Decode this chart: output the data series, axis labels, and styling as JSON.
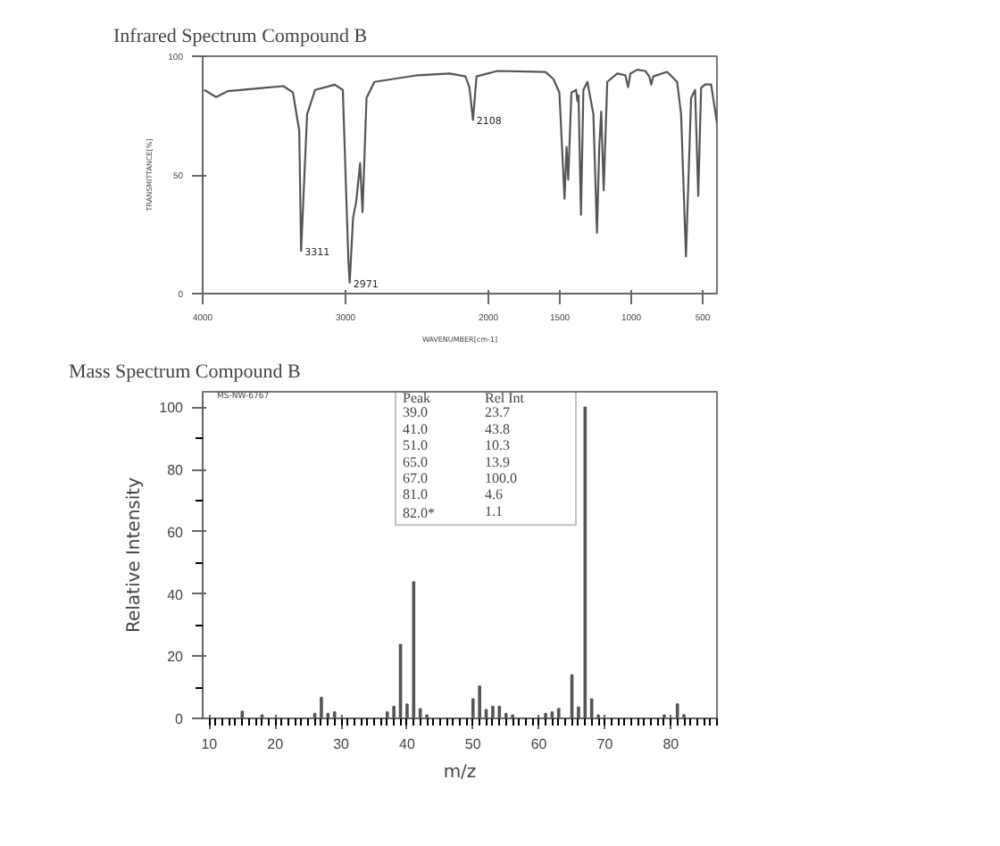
{
  "chart_data": [
    {
      "type": "line",
      "title": "Infrared Spectrum Compound B",
      "xlabel": "WAVENUMBER[cm-1]",
      "ylabel": "TRANSMITTANCE[%]",
      "xlim": [
        4000,
        400
      ],
      "xticks": [
        4000,
        3000,
        2000,
        1500,
        1000,
        500
      ],
      "ylim": [
        0,
        100
      ],
      "yticks": [
        0,
        50,
        100
      ],
      "grid": false,
      "marker": "none",
      "line_style": "solid",
      "series": [
        {
          "color": "#555555",
          "x": [
            3989,
            3906,
            3823,
            3601,
            3435,
            3368,
            3324,
            3311,
            3269,
            3213,
            3075,
            3019,
            2980,
            2971,
            2947,
            2925,
            2898,
            2881,
            2853,
            2798,
            2493,
            2271,
            2161,
            2133,
            2108,
            2083,
            1936,
            1601,
            1545,
            1503,
            1467,
            1453,
            1441,
            1419,
            1386,
            1377,
            1369,
            1352,
            1335,
            1307,
            1265,
            1240,
            1224,
            1210,
            1193,
            1168,
            1098,
            1042,
            1022,
            1006,
            958,
            902,
            874,
            860,
            846,
            749,
            679,
            651,
            617,
            581,
            553,
            531,
            511,
            483,
            441,
            400
          ],
          "values": [
            85.8,
            82.8,
            85.3,
            86.5,
            87.4,
            84.7,
            68.6,
            18,
            75.5,
            85.8,
            88,
            85.8,
            13.7,
            4.6,
            32,
            38.9,
            54.9,
            34.3,
            82.4,
            89.2,
            92,
            92.7,
            91.5,
            87,
            73.2,
            91.5,
            93.8,
            93.4,
            90.4,
            84.7,
            40,
            61.8,
            48,
            84.7,
            85.8,
            81.2,
            83.5,
            33.2,
            85.8,
            89.2,
            75.5,
            25.6,
            61.8,
            76.7,
            43.5,
            89.2,
            92.7,
            92,
            87,
            92.7,
            94.3,
            93.8,
            91.5,
            88.1,
            91.5,
            93.4,
            89.2,
            75.5,
            15.6,
            82.4,
            85.8,
            41.2,
            86.7,
            88.1,
            88.1,
            72
          ]
        }
      ],
      "annotations": [
        {
          "text": "3311",
          "x": 3311,
          "y": 18
        },
        {
          "text": "2971",
          "x": 2971,
          "y": 4.6
        },
        {
          "text": "2108",
          "x": 2108,
          "y": 73.2
        }
      ]
    },
    {
      "type": "bar",
      "title": "Mass Spectrum Compound B",
      "xlabel": "m/z",
      "ylabel": "Relative Intensity",
      "xlim": [
        9,
        87
      ],
      "xticks": [
        10,
        20,
        30,
        40,
        50,
        60,
        70,
        80
      ],
      "ylim": [
        0,
        105
      ],
      "yticks": [
        0,
        20,
        40,
        60,
        80,
        100
      ],
      "grid": false,
      "x": [
        15,
        18,
        26,
        27,
        28,
        29,
        37,
        38,
        39,
        40,
        41,
        42,
        43,
        50,
        51,
        52,
        53,
        54,
        55,
        56,
        61,
        62,
        63,
        65,
        66,
        67,
        68,
        69,
        79,
        80,
        81,
        82
      ],
      "series": [
        {
          "color": "#555555",
          "values": [
            2.2,
            1,
            1.5,
            6.7,
            1.5,
            2,
            2,
            3.8,
            23.7,
            4.5,
            43.8,
            3,
            1,
            6.2,
            10.3,
            2.7,
            3.8,
            3.8,
            1.5,
            1,
            1.5,
            2,
            3.1,
            13.9,
            3.6,
            100,
            6.2,
            1,
            1,
            null,
            4.6,
            1.1
          ]
        }
      ],
      "annotations": [
        "MS-NW-6767",
        "Peak",
        "Rel Int",
        "39.0",
        "23.7",
        "41.0",
        "43.8",
        "51.0",
        "10.3",
        "65.0",
        "13.9",
        "67.0",
        "100.0",
        "81.0",
        "4.6",
        "82.0*",
        "1.1"
      ]
    }
  ]
}
